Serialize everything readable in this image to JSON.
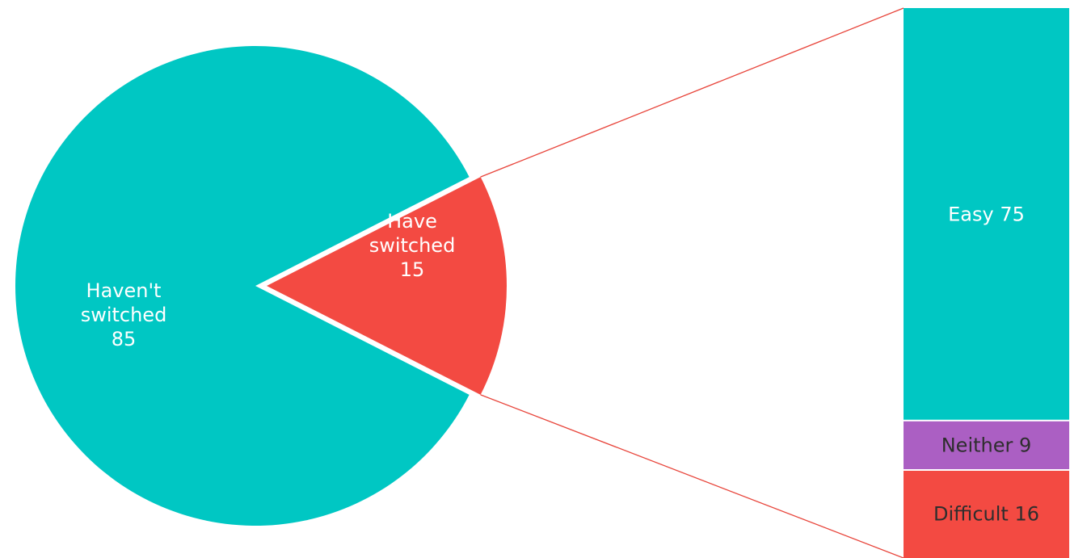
{
  "colors": {
    "teal": "#00C7C3",
    "red": "#F34A42",
    "purple": "#AB5FC3",
    "connector": "#E8463C",
    "label_light": "#FFFFFF",
    "label_dark": "#2E2E2E"
  },
  "chart_data": [
    {
      "type": "pie",
      "slices": [
        {
          "label": "Haven't switched",
          "label_lines": [
            "Haven't",
            "switched"
          ],
          "value": 85,
          "color": "#00C7C3",
          "exploded": false
        },
        {
          "label": "Have switched",
          "label_lines": [
            "Have",
            "switched"
          ],
          "value": 15,
          "color": "#F34A42",
          "exploded": true
        }
      ]
    },
    {
      "type": "bar",
      "stacked": true,
      "breakdown_of": "Have switched",
      "segments": [
        {
          "label": "Easy",
          "value": 75,
          "color": "#00C7C3"
        },
        {
          "label": "Neither",
          "value": 9,
          "color": "#AB5FC3"
        },
        {
          "label": "Difficult",
          "value": 16,
          "color": "#F34A42"
        }
      ]
    }
  ]
}
